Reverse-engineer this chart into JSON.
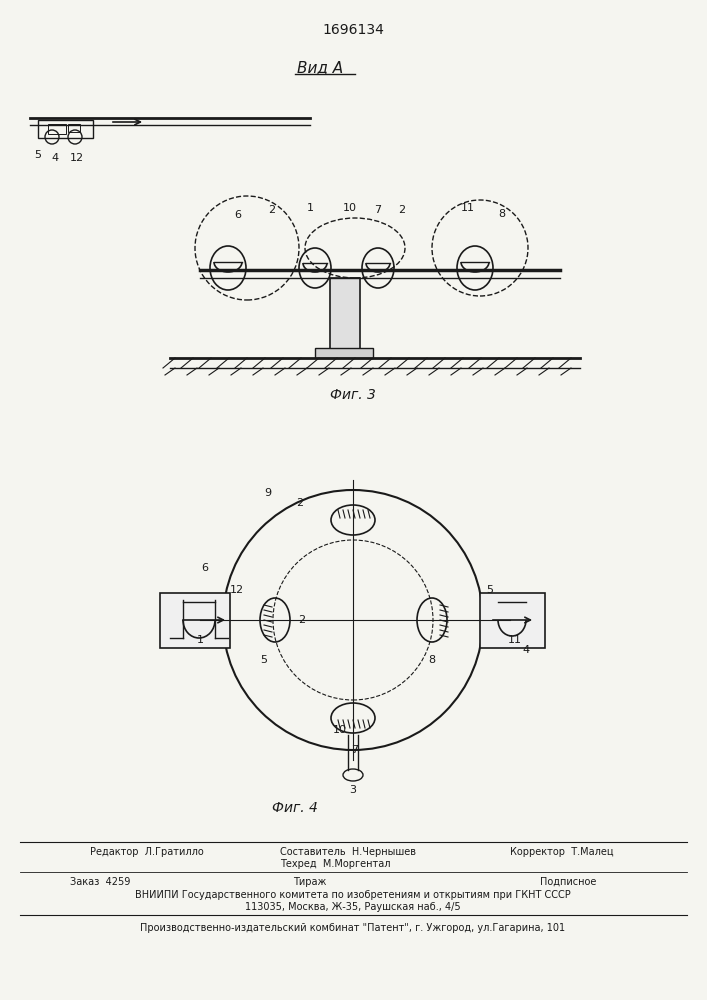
{
  "patent_number": "1696134",
  "view_label": "Вид А",
  "fig3_label": "Фиг. 3",
  "fig4_label": "Фиг. 4",
  "bg_color": "#f5f5f0",
  "line_color": "#1a1a1a",
  "footer_lines": [
    [
      "Редактор  Л.Гратилло",
      "Составитель  Н.Чернышев",
      "Корректор  Т.Малец"
    ],
    [
      "",
      "Техред  М.Моргентал",
      ""
    ],
    [
      "Заказ  4259",
      "Тираж",
      "Подписное"
    ],
    [
      "ВНИИПИ Государственного комитета по изобретениям и открытиям при ГКНТ СССР"
    ],
    [
      "113035, Москва, Ж-35, Раушская наб., 4/5"
    ],
    [
      "Производственно-издательский комбинат \"Патент\", г. Ужгород, ул.Гагарина, 101"
    ]
  ]
}
